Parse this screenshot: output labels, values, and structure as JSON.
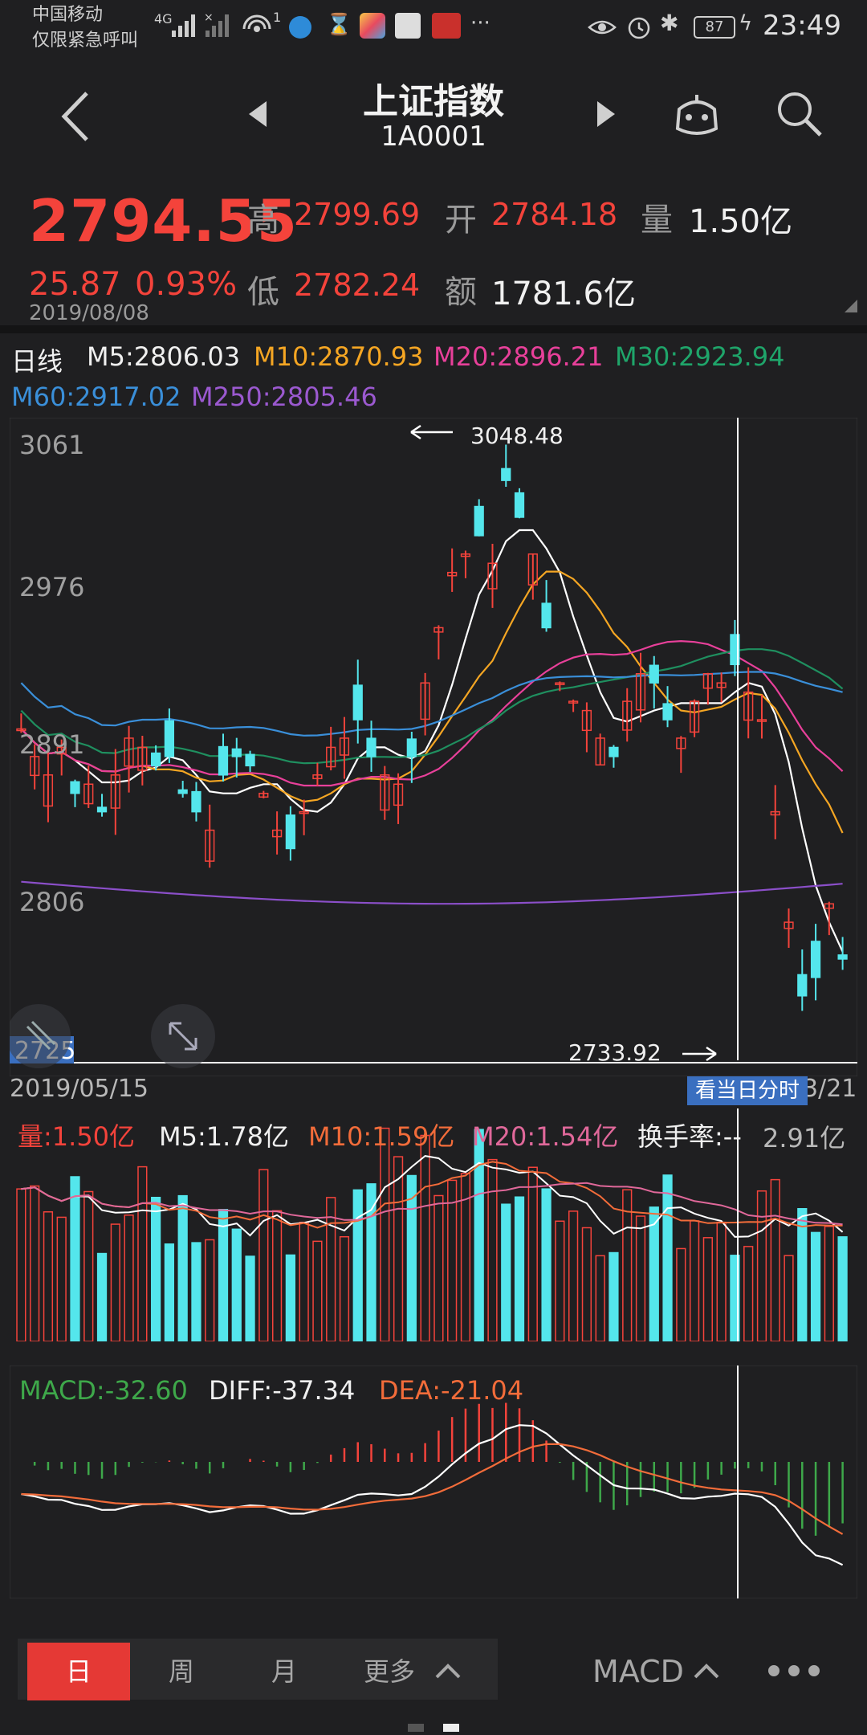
{
  "status_bar": {
    "carrier": "中国移动",
    "emergency": "仅限紧急呼叫",
    "network": "4G",
    "hotspot_count": "1",
    "battery": "87",
    "time": "23:49"
  },
  "header": {
    "title": "上证指数",
    "code": "1A0001"
  },
  "quote": {
    "price": "2794.55",
    "change": "25.87",
    "change_pct": "0.93%",
    "date": "2019/08/08",
    "high_label": "高",
    "high": "2799.69",
    "low_label": "低",
    "low": "2782.24",
    "open_label": "开",
    "open": "2784.18",
    "amount_label": "额",
    "amount": "1781.6亿",
    "volume_label": "量",
    "volume": "1.50亿"
  },
  "ma_legend": {
    "period": "日线",
    "m5": "M5:2806.03",
    "m10": "M10:2870.93",
    "m20": "M20:2896.21",
    "m30": "M30:2923.94",
    "m60": "M60:2917.02",
    "m250": "M250:2805.46"
  },
  "kline": {
    "y_labels": [
      "3061",
      "2976",
      "2891",
      "2806",
      "2725"
    ],
    "max_label": "3048.48",
    "min_label": "2733.92",
    "start_date": "2019/05/15",
    "end_date_partial": "3/21",
    "intraday_button": "看当日分时"
  },
  "volume_legend": {
    "vol": "量:1.50亿",
    "m5": "M5:1.78亿",
    "m10": "M10:1.59亿",
    "m20": "M20:1.54亿",
    "turnover": "换手率:--",
    "max": "2.91亿"
  },
  "macd_legend": {
    "macd": "MACD:-32.60",
    "diff": "DIFF:-37.34",
    "dea": "DEA:-21.04"
  },
  "bottom_bar": {
    "tabs": [
      "日",
      "周",
      "月",
      "更多"
    ],
    "indicator": "MACD"
  },
  "colors": {
    "up": "#f4433b",
    "down": "#54e6ec",
    "m5": "#ffffff",
    "m10": "#f5a623",
    "m20": "#e8409a",
    "m30": "#1f8f5f",
    "m60": "#3a8fd9",
    "m250": "#8b4fc9",
    "tab_active": "#e53935"
  }
}
